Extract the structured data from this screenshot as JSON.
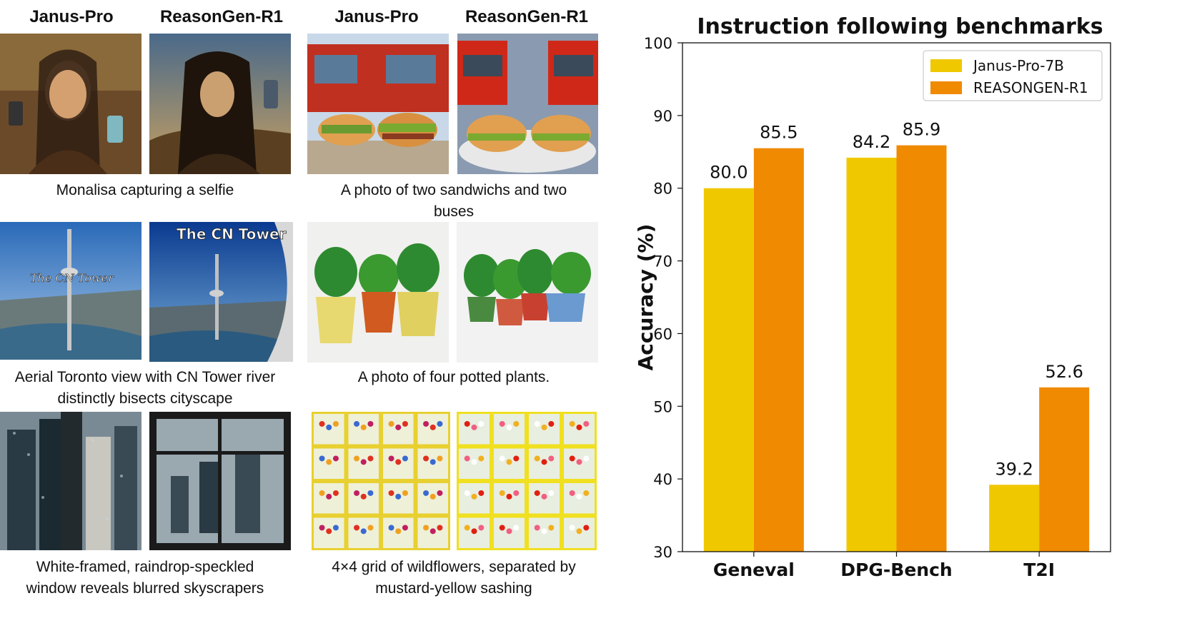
{
  "grid": {
    "column_headers": [
      "Janus-Pro",
      "ReasonGen-R1",
      "Janus-Pro",
      "ReasonGen-R1"
    ],
    "captions": [
      "Monalisa capturing a selfie",
      "A photo of two sandwichs and two buses",
      "Aerial Toronto view with CN Tower river distinctly bisects cityscape",
      "A photo of four potted plants.",
      "White-framed, raindrop-speckled window reveals blurred skyscrapers",
      "4×4 grid of wildflowers, separated by mustard-yellow sashing"
    ],
    "image_text": {
      "cn_tower_left": "The CN Tower",
      "cn_tower_right": "The CN Tower"
    }
  },
  "chart_data": {
    "type": "bar",
    "title": "Instruction following benchmarks",
    "xlabel": "",
    "ylabel": "Accuracy (%)",
    "categories": [
      "Geneval",
      "DPG-Bench",
      "T2I"
    ],
    "series": [
      {
        "name": "Janus-Pro-7B",
        "color": "#f0c800",
        "values": [
          80.0,
          84.2,
          39.2
        ]
      },
      {
        "name": "REASONGEN-R1",
        "color": "#f08a00",
        "values": [
          85.5,
          85.9,
          52.6
        ]
      }
    ],
    "ylim": [
      30,
      100
    ],
    "yticks": [
      30,
      40,
      50,
      60,
      70,
      80,
      90,
      100
    ],
    "grid": false,
    "legend": "top-right"
  }
}
